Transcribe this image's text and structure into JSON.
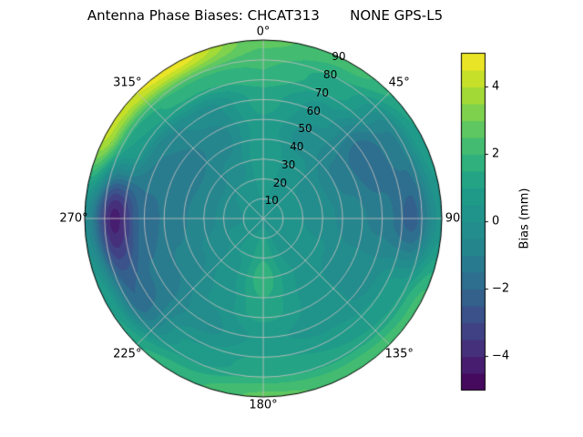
{
  "chart_data": {
    "type": "polar_contour",
    "title": "Antenna Phase Biases: CHCAT313       NONE GPS-L5",
    "colorbar_label": "Bias (mm)",
    "colorbar_ticks": [
      {
        "value": 4,
        "label": "4"
      },
      {
        "value": 2,
        "label": "2"
      },
      {
        "value": 0,
        "label": "0"
      },
      {
        "value": -2,
        "label": "−2"
      },
      {
        "value": -4,
        "label": "−4"
      }
    ],
    "scale": {
      "vmin": -5,
      "vmax": 5,
      "cmap": "viridis",
      "contour_step_mm": 0.5
    },
    "angle_ticks": [
      {
        "az_deg": 0,
        "label": "0°"
      },
      {
        "az_deg": 45,
        "label": "45°"
      },
      {
        "az_deg": 90,
        "label": "90"
      },
      {
        "az_deg": 135,
        "label": "135°"
      },
      {
        "az_deg": 180,
        "label": "180°"
      },
      {
        "az_deg": 225,
        "label": "225°"
      },
      {
        "az_deg": 270,
        "label": "270°"
      },
      {
        "az_deg": 315,
        "label": "315°"
      }
    ],
    "radial_ticks": [
      {
        "zenith_deg": 10,
        "label": "10"
      },
      {
        "zenith_deg": 20,
        "label": "20"
      },
      {
        "zenith_deg": 30,
        "label": "30"
      },
      {
        "zenith_deg": 40,
        "label": "40"
      },
      {
        "zenith_deg": 50,
        "label": "50"
      },
      {
        "zenith_deg": 60,
        "label": "60"
      },
      {
        "zenith_deg": 70,
        "label": "70"
      },
      {
        "zenith_deg": 80,
        "label": "80"
      },
      {
        "zenith_deg": 90,
        "label": "90"
      }
    ],
    "azimuth_grid_deg": [
      0,
      30,
      60,
      90,
      120,
      150,
      180,
      210,
      240,
      270,
      300,
      330
    ],
    "zenith_grid_deg": [
      0,
      15,
      30,
      45,
      60,
      75,
      90
    ],
    "bias_mm": [
      [
        0.3,
        0.6,
        1.0,
        0.8,
        1.2,
        2.0,
        2.6
      ],
      [
        0.3,
        0.4,
        0.2,
        -0.3,
        0.2,
        1.2,
        2.2
      ],
      [
        0.3,
        0.1,
        -0.4,
        -1.2,
        -2.0,
        -1.2,
        1.0
      ],
      [
        0.3,
        0.1,
        -0.3,
        -0.8,
        -1.2,
        -2.2,
        0.2
      ],
      [
        0.3,
        0.2,
        0.1,
        -0.3,
        -0.2,
        0.8,
        2.2
      ],
      [
        0.3,
        0.4,
        0.5,
        0.4,
        0.3,
        1.0,
        2.4
      ],
      [
        0.3,
        1.3,
        1.8,
        1.4,
        0.6,
        1.2,
        2.6
      ],
      [
        0.3,
        0.6,
        0.4,
        0.1,
        -0.2,
        0.6,
        1.8
      ],
      [
        0.3,
        0.1,
        -0.4,
        -0.9,
        -1.4,
        -2.0,
        1.0
      ],
      [
        0.3,
        -0.1,
        -0.7,
        -1.2,
        -1.8,
        -4.2,
        -0.5
      ],
      [
        0.3,
        0.0,
        -0.8,
        -1.4,
        -1.0,
        1.0,
        4.2
      ],
      [
        0.3,
        0.2,
        -0.4,
        -0.8,
        -0.3,
        1.8,
        4.8
      ]
    ],
    "palette": {
      "viridis_stops": [
        "#440154",
        "#482878",
        "#3e4a89",
        "#31688e",
        "#26828e",
        "#21918c",
        "#1f9e89",
        "#35b779",
        "#6dcd59",
        "#b4de2c",
        "#fde725"
      ]
    },
    "grid_color": "#bdbdbd",
    "outline_color": "#000000",
    "background": "#ffffff"
  }
}
